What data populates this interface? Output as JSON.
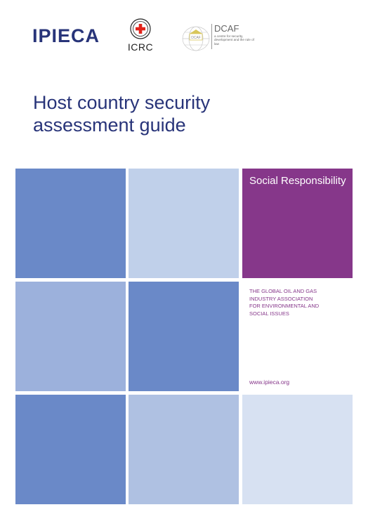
{
  "header": {
    "logo_ipieca": "IPIECA",
    "logo_icrc": "ICRC",
    "logo_dcaf": "DCAF",
    "dcaf_tagline": "a centre for security, development and the rule of law",
    "dcaf_emblem_text": "DCAF"
  },
  "cover": {
    "title": "Host country security assessment guide"
  },
  "panel": {
    "series_label": "Social Responsibility",
    "association": "THE GLOBAL OIL AND GAS INDUSTRY ASSOCIATION FOR ENVIRONMENTAL AND SOCIAL ISSUES",
    "website": "www.ipieca.org"
  },
  "colors": {
    "navy": "#283479",
    "purple": "#86378a",
    "tile_blue": "#6a89c8",
    "tile_mid": "#9cb1dc",
    "tile_light": "#c0d0ea",
    "tile_pale": "#d7e1f2",
    "tile_soft": "#afc1e2"
  }
}
